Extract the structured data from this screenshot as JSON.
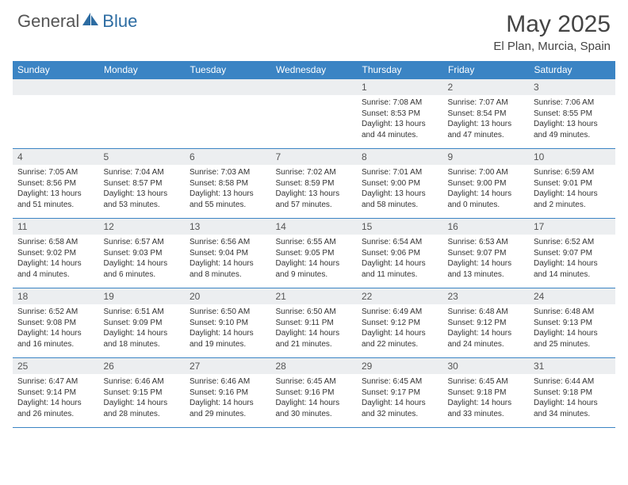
{
  "logo": {
    "general": "General",
    "blue": "Blue"
  },
  "title": "May 2025",
  "location": "El Plan, Murcia, Spain",
  "colors": {
    "header_bg": "#3b84c4",
    "header_text": "#ffffff",
    "daynum_bg": "#eceef0",
    "border": "#3b84c4",
    "logo_blue": "#2d6ca2"
  },
  "weekdays": [
    "Sunday",
    "Monday",
    "Tuesday",
    "Wednesday",
    "Thursday",
    "Friday",
    "Saturday"
  ],
  "weeks": [
    [
      null,
      null,
      null,
      null,
      {
        "n": "1",
        "sr": "7:08 AM",
        "ss": "8:53 PM",
        "dl": "13 hours and 44 minutes."
      },
      {
        "n": "2",
        "sr": "7:07 AM",
        "ss": "8:54 PM",
        "dl": "13 hours and 47 minutes."
      },
      {
        "n": "3",
        "sr": "7:06 AM",
        "ss": "8:55 PM",
        "dl": "13 hours and 49 minutes."
      }
    ],
    [
      {
        "n": "4",
        "sr": "7:05 AM",
        "ss": "8:56 PM",
        "dl": "13 hours and 51 minutes."
      },
      {
        "n": "5",
        "sr": "7:04 AM",
        "ss": "8:57 PM",
        "dl": "13 hours and 53 minutes."
      },
      {
        "n": "6",
        "sr": "7:03 AM",
        "ss": "8:58 PM",
        "dl": "13 hours and 55 minutes."
      },
      {
        "n": "7",
        "sr": "7:02 AM",
        "ss": "8:59 PM",
        "dl": "13 hours and 57 minutes."
      },
      {
        "n": "8",
        "sr": "7:01 AM",
        "ss": "9:00 PM",
        "dl": "13 hours and 58 minutes."
      },
      {
        "n": "9",
        "sr": "7:00 AM",
        "ss": "9:00 PM",
        "dl": "14 hours and 0 minutes."
      },
      {
        "n": "10",
        "sr": "6:59 AM",
        "ss": "9:01 PM",
        "dl": "14 hours and 2 minutes."
      }
    ],
    [
      {
        "n": "11",
        "sr": "6:58 AM",
        "ss": "9:02 PM",
        "dl": "14 hours and 4 minutes."
      },
      {
        "n": "12",
        "sr": "6:57 AM",
        "ss": "9:03 PM",
        "dl": "14 hours and 6 minutes."
      },
      {
        "n": "13",
        "sr": "6:56 AM",
        "ss": "9:04 PM",
        "dl": "14 hours and 8 minutes."
      },
      {
        "n": "14",
        "sr": "6:55 AM",
        "ss": "9:05 PM",
        "dl": "14 hours and 9 minutes."
      },
      {
        "n": "15",
        "sr": "6:54 AM",
        "ss": "9:06 PM",
        "dl": "14 hours and 11 minutes."
      },
      {
        "n": "16",
        "sr": "6:53 AM",
        "ss": "9:07 PM",
        "dl": "14 hours and 13 minutes."
      },
      {
        "n": "17",
        "sr": "6:52 AM",
        "ss": "9:07 PM",
        "dl": "14 hours and 14 minutes."
      }
    ],
    [
      {
        "n": "18",
        "sr": "6:52 AM",
        "ss": "9:08 PM",
        "dl": "14 hours and 16 minutes."
      },
      {
        "n": "19",
        "sr": "6:51 AM",
        "ss": "9:09 PM",
        "dl": "14 hours and 18 minutes."
      },
      {
        "n": "20",
        "sr": "6:50 AM",
        "ss": "9:10 PM",
        "dl": "14 hours and 19 minutes."
      },
      {
        "n": "21",
        "sr": "6:50 AM",
        "ss": "9:11 PM",
        "dl": "14 hours and 21 minutes."
      },
      {
        "n": "22",
        "sr": "6:49 AM",
        "ss": "9:12 PM",
        "dl": "14 hours and 22 minutes."
      },
      {
        "n": "23",
        "sr": "6:48 AM",
        "ss": "9:12 PM",
        "dl": "14 hours and 24 minutes."
      },
      {
        "n": "24",
        "sr": "6:48 AM",
        "ss": "9:13 PM",
        "dl": "14 hours and 25 minutes."
      }
    ],
    [
      {
        "n": "25",
        "sr": "6:47 AM",
        "ss": "9:14 PM",
        "dl": "14 hours and 26 minutes."
      },
      {
        "n": "26",
        "sr": "6:46 AM",
        "ss": "9:15 PM",
        "dl": "14 hours and 28 minutes."
      },
      {
        "n": "27",
        "sr": "6:46 AM",
        "ss": "9:16 PM",
        "dl": "14 hours and 29 minutes."
      },
      {
        "n": "28",
        "sr": "6:45 AM",
        "ss": "9:16 PM",
        "dl": "14 hours and 30 minutes."
      },
      {
        "n": "29",
        "sr": "6:45 AM",
        "ss": "9:17 PM",
        "dl": "14 hours and 32 minutes."
      },
      {
        "n": "30",
        "sr": "6:45 AM",
        "ss": "9:18 PM",
        "dl": "14 hours and 33 minutes."
      },
      {
        "n": "31",
        "sr": "6:44 AM",
        "ss": "9:18 PM",
        "dl": "14 hours and 34 minutes."
      }
    ]
  ],
  "labels": {
    "sunrise": "Sunrise: ",
    "sunset": "Sunset: ",
    "daylight": "Daylight: "
  }
}
